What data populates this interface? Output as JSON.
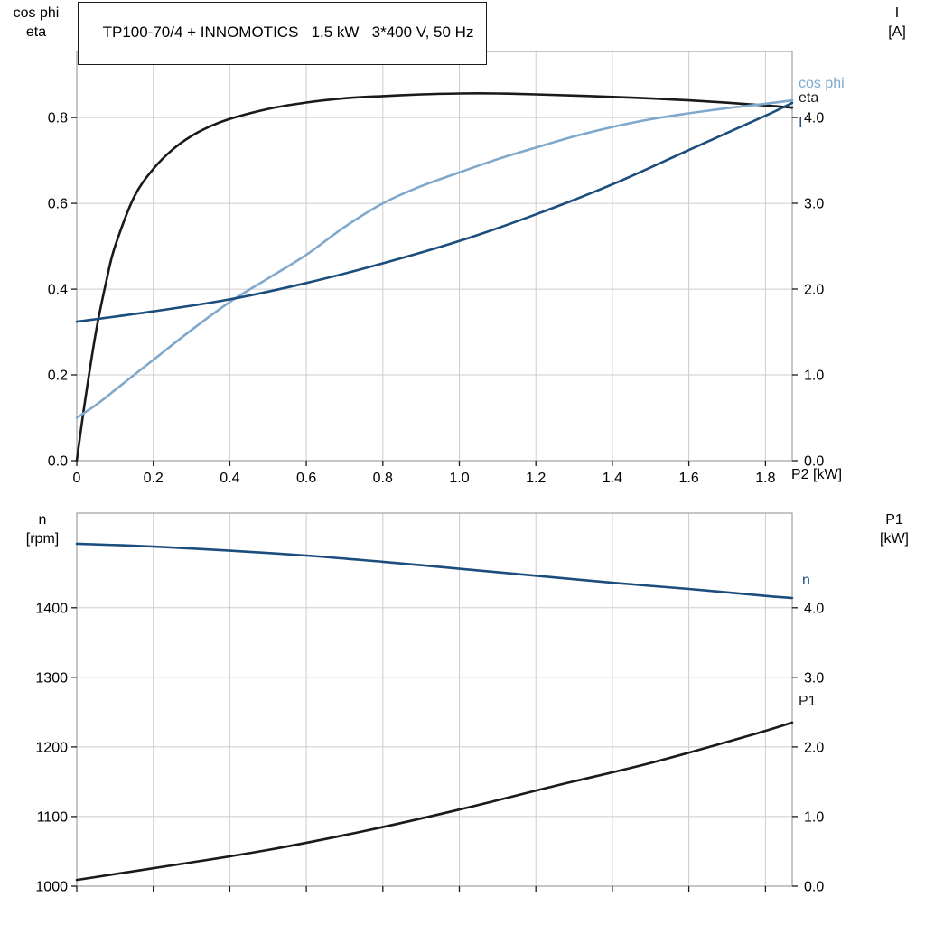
{
  "chart_data": [
    {
      "type": "line",
      "title": "TP100-70/4 + INNOMOTICS   1.5 kW   3*400 V, 50 Hz",
      "x": {
        "label": "P2 [kW]",
        "range": [
          0,
          1.87
        ],
        "ticks": [
          "0",
          "0.2",
          "0.4",
          "0.6",
          "0.8",
          "1.0",
          "1.2",
          "1.4",
          "1.6",
          "1.8"
        ],
        "show_tick_labels": true
      },
      "y_left": {
        "title_lines": [
          "cos phi",
          "eta"
        ],
        "range": [
          0,
          0.954
        ],
        "ticks": [
          "0.0",
          "0.2",
          "0.4",
          "0.6",
          "0.8"
        ]
      },
      "y_right": {
        "title_lines": [
          "I",
          "[A]"
        ],
        "range": [
          0,
          4.768
        ],
        "ticks": [
          "0.0",
          "1.0",
          "2.0",
          "3.0",
          "4.0"
        ]
      },
      "grid": true,
      "series": [
        {
          "name": "eta",
          "label": "eta",
          "axis": "left",
          "color": "#1a1a1a",
          "x": [
            0,
            0.02,
            0.05,
            0.08,
            0.1,
            0.15,
            0.2,
            0.25,
            0.3,
            0.35,
            0.4,
            0.5,
            0.6,
            0.7,
            0.8,
            0.9,
            1.0,
            1.1,
            1.2,
            1.4,
            1.6,
            1.8,
            1.87
          ],
          "y": [
            0,
            0.13,
            0.3,
            0.43,
            0.5,
            0.615,
            0.68,
            0.725,
            0.757,
            0.78,
            0.797,
            0.82,
            0.835,
            0.845,
            0.85,
            0.854,
            0.856,
            0.856,
            0.854,
            0.848,
            0.84,
            0.828,
            0.823
          ]
        },
        {
          "name": "cos-phi",
          "label": "cos phi",
          "axis": "left",
          "color": "#7fa8cd",
          "x": [
            0,
            0.05,
            0.1,
            0.15,
            0.2,
            0.3,
            0.4,
            0.5,
            0.6,
            0.7,
            0.8,
            0.9,
            1.0,
            1.1,
            1.2,
            1.3,
            1.4,
            1.5,
            1.6,
            1.7,
            1.8,
            1.87
          ],
          "y": [
            0.1,
            0.13,
            0.165,
            0.2,
            0.235,
            0.305,
            0.37,
            0.425,
            0.48,
            0.545,
            0.6,
            0.64,
            0.672,
            0.703,
            0.73,
            0.756,
            0.778,
            0.796,
            0.81,
            0.822,
            0.832,
            0.84
          ]
        },
        {
          "name": "current",
          "label": "I",
          "axis": "right",
          "color": "#1b4d7d",
          "x": [
            0,
            0.2,
            0.4,
            0.6,
            0.8,
            1.0,
            1.2,
            1.4,
            1.6,
            1.8,
            1.87
          ],
          "y": [
            1.62,
            1.74,
            1.88,
            2.07,
            2.3,
            2.56,
            2.87,
            3.22,
            3.62,
            4.02,
            4.17
          ]
        }
      ]
    },
    {
      "type": "line",
      "x": {
        "label": "",
        "range": [
          0,
          1.87
        ],
        "ticks": [
          "0",
          "0.2",
          "0.4",
          "0.6",
          "0.8",
          "1.0",
          "1.2",
          "1.4",
          "1.6",
          "1.8"
        ],
        "show_tick_labels": false
      },
      "y_left": {
        "title_lines": [
          "n",
          "[rpm]"
        ],
        "range": [
          1000,
          1536
        ],
        "ticks": [
          "1000",
          "1100",
          "1200",
          "1300",
          "1400"
        ]
      },
      "y_right": {
        "title_lines": [
          "P1",
          "[kW]"
        ],
        "range": [
          0,
          5.36
        ],
        "ticks": [
          "0.0",
          "1.0",
          "2.0",
          "3.0",
          "4.0"
        ]
      },
      "grid": true,
      "series": [
        {
          "name": "speed",
          "label": "n",
          "axis": "left",
          "color": "#1b4d7d",
          "x": [
            0,
            0.2,
            0.4,
            0.6,
            0.8,
            1.0,
            1.2,
            1.4,
            1.6,
            1.8,
            1.87
          ],
          "y": [
            1492,
            1488,
            1482,
            1475,
            1466,
            1456,
            1446,
            1436,
            1427,
            1417,
            1414
          ]
        },
        {
          "name": "p1",
          "label": "P1",
          "axis": "right",
          "color": "#1a1a1a",
          "x": [
            0,
            0.25,
            0.5,
            0.75,
            1.0,
            1.25,
            1.5,
            1.75,
            1.87
          ],
          "y": [
            0.09,
            0.3,
            0.52,
            0.79,
            1.1,
            1.44,
            1.77,
            2.15,
            2.35
          ]
        }
      ]
    }
  ]
}
